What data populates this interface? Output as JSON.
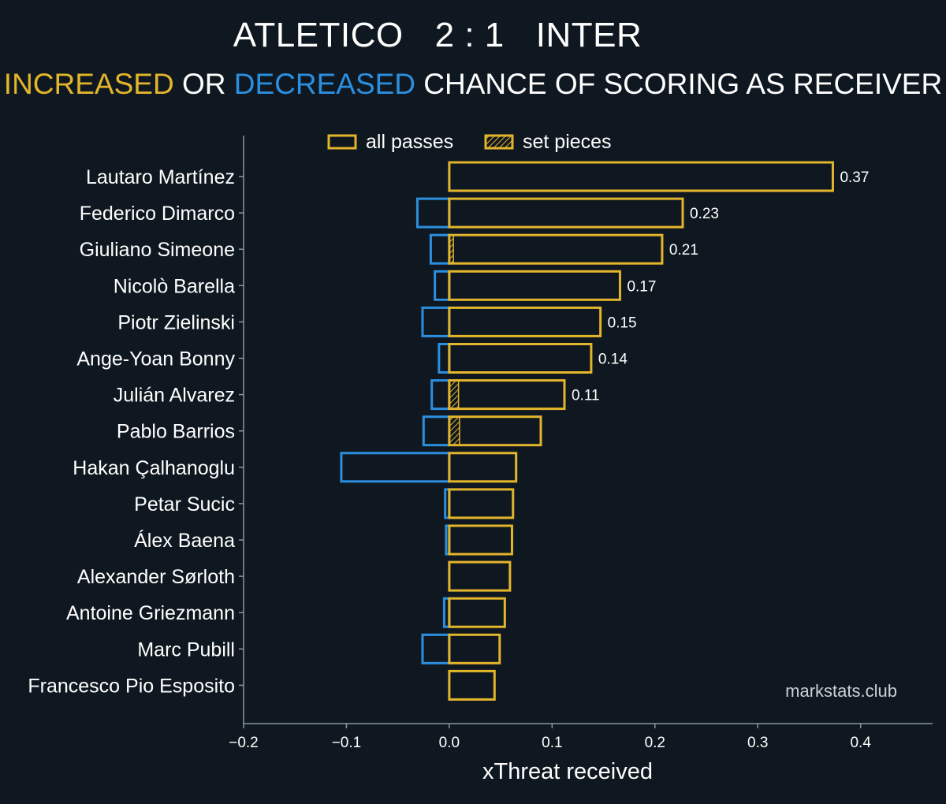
{
  "title": {
    "home": "ATLETICO",
    "score": "2 : 1",
    "away": "INTER"
  },
  "subtitle": {
    "increased": "INCREASED",
    "or": " OR ",
    "decreased": "DECREASED",
    "rest": " CHANCE OF SCORING AS RECEIVER"
  },
  "colors": {
    "background": "#0f1820",
    "increased": "#e3b52b",
    "decreased": "#2b8fe0",
    "text": "#ffffff",
    "axis": "#8a96a0"
  },
  "watermark": "markstats.club",
  "chart_data": {
    "type": "bar",
    "orientation": "horizontal",
    "xlabel": "xThreat received",
    "xlim": [
      -0.2,
      0.47
    ],
    "xticks": [
      -0.2,
      -0.1,
      0.0,
      0.1,
      0.2,
      0.3,
      0.4
    ],
    "xtick_labels": [
      "−0.2",
      "−0.1",
      "0.0",
      "0.1",
      "0.2",
      "0.3",
      "0.4"
    ],
    "grid": false,
    "legend_position": "top",
    "legend": [
      {
        "label": "all passes",
        "style": "outline"
      },
      {
        "label": "set pieces",
        "style": "hatched"
      }
    ],
    "categories": [
      "Lautaro Martínez",
      "Federico Dimarco",
      "Giuliano Simeone",
      "Nicolò Barella",
      "Piotr Zielinski",
      "Ange-Yoan Bonny",
      "Julián Alvarez",
      "Pablo Barrios",
      "Hakan Çalhanoglu",
      "Petar Sucic",
      "Álex Baena",
      "Alexander Sørloth",
      "Antoine Griezmann",
      "Marc Pubill",
      "Francesco Pio Esposito"
    ],
    "series": [
      {
        "name": "all passes",
        "values": [
          0.373,
          0.227,
          0.207,
          0.166,
          0.147,
          0.138,
          0.112,
          0.089,
          0.065,
          0.062,
          0.061,
          0.059,
          0.054,
          0.049,
          0.044
        ]
      },
      {
        "name": "decreased",
        "values": [
          0.0,
          -0.031,
          -0.018,
          -0.014,
          -0.026,
          -0.01,
          -0.017,
          -0.025,
          -0.105,
          -0.004,
          -0.003,
          0.0,
          -0.005,
          -0.026,
          0.0
        ]
      },
      {
        "name": "set pieces",
        "values": [
          0.0,
          0.0,
          0.004,
          0.0,
          0.0,
          0.0,
          0.009,
          0.01,
          0.0,
          0.0,
          0.0,
          0.0,
          0.0,
          0.0,
          0.0
        ]
      }
    ],
    "data_labels": [
      "0.37",
      "0.23",
      "0.21",
      "0.17",
      "0.15",
      "0.14",
      "0.11",
      "",
      "",
      "",
      "",
      "",
      "",
      "",
      ""
    ]
  }
}
